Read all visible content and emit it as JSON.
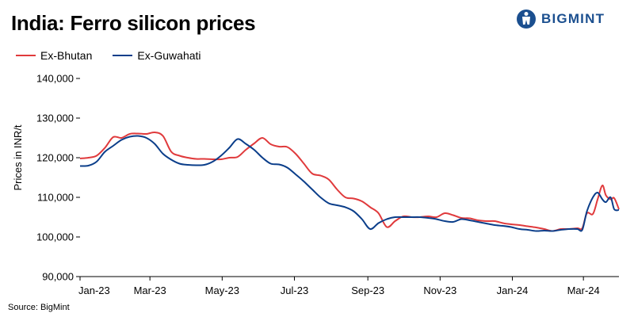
{
  "header": {
    "title": "India: Ferro silicon prices",
    "logo_text": "BIGMINT"
  },
  "footer": {
    "source": "Source: BigMint"
  },
  "chart_data": {
    "type": "line",
    "ylabel": "Prices in INR/t",
    "ylim": [
      90000,
      140000
    ],
    "yticks": [
      90000,
      100000,
      110000,
      120000,
      130000,
      140000
    ],
    "ytick_labels": [
      "90,000",
      "100,000",
      "110,000",
      "120,000",
      "130,000",
      "140,000"
    ],
    "xlim": [
      "2023-01-01",
      "2024-03-31"
    ],
    "xticks": [
      "2023-01-01",
      "2023-03-01",
      "2023-05-01",
      "2023-07-01",
      "2023-09-01",
      "2023-11-01",
      "2024-01-01",
      "2024-03-01"
    ],
    "xtick_labels": [
      "Jan-23",
      "Mar-23",
      "May-23",
      "Jul-23",
      "Sep-23",
      "Nov-23",
      "Jan-24",
      "Mar-24"
    ],
    "legend_position": "top-left",
    "grid": false,
    "series": [
      {
        "name": "Ex-Bhutan",
        "color": "#e03a3c",
        "points": [
          [
            "2023-01-01",
            119800
          ],
          [
            "2023-01-08",
            120000
          ],
          [
            "2023-01-15",
            120500
          ],
          [
            "2023-01-22",
            122500
          ],
          [
            "2023-01-29",
            125200
          ],
          [
            "2023-02-05",
            125000
          ],
          [
            "2023-02-12",
            126000
          ],
          [
            "2023-02-19",
            126100
          ],
          [
            "2023-02-26",
            126000
          ],
          [
            "2023-03-05",
            126400
          ],
          [
            "2023-03-12",
            125500
          ],
          [
            "2023-03-19",
            121500
          ],
          [
            "2023-03-26",
            120500
          ],
          [
            "2023-04-02",
            120000
          ],
          [
            "2023-04-09",
            119700
          ],
          [
            "2023-04-16",
            119700
          ],
          [
            "2023-04-23",
            119600
          ],
          [
            "2023-04-30",
            119600
          ],
          [
            "2023-05-07",
            120000
          ],
          [
            "2023-05-14",
            120200
          ],
          [
            "2023-05-21",
            122000
          ],
          [
            "2023-05-28",
            123600
          ],
          [
            "2023-06-04",
            125000
          ],
          [
            "2023-06-11",
            123400
          ],
          [
            "2023-06-18",
            122800
          ],
          [
            "2023-06-25",
            122700
          ],
          [
            "2023-07-02",
            121000
          ],
          [
            "2023-07-09",
            118500
          ],
          [
            "2023-07-16",
            116000
          ],
          [
            "2023-07-23",
            115500
          ],
          [
            "2023-07-30",
            114500
          ],
          [
            "2023-08-06",
            112000
          ],
          [
            "2023-08-13",
            110000
          ],
          [
            "2023-08-20",
            109700
          ],
          [
            "2023-08-27",
            109000
          ],
          [
            "2023-09-03",
            107500
          ],
          [
            "2023-09-10",
            106000
          ],
          [
            "2023-09-17",
            102500
          ],
          [
            "2023-09-24",
            104000
          ],
          [
            "2023-10-01",
            105200
          ],
          [
            "2023-10-08",
            105000
          ],
          [
            "2023-10-15",
            105000
          ],
          [
            "2023-10-22",
            105200
          ],
          [
            "2023-10-29",
            105000
          ],
          [
            "2023-11-05",
            106000
          ],
          [
            "2023-11-12",
            105500
          ],
          [
            "2023-11-19",
            104800
          ],
          [
            "2023-11-26",
            104700
          ],
          [
            "2023-12-03",
            104200
          ],
          [
            "2023-12-10",
            104000
          ],
          [
            "2023-12-17",
            104000
          ],
          [
            "2023-12-24",
            103500
          ],
          [
            "2023-12-31",
            103200
          ],
          [
            "2024-01-07",
            103000
          ],
          [
            "2024-01-14",
            102700
          ],
          [
            "2024-01-21",
            102400
          ],
          [
            "2024-01-28",
            102000
          ],
          [
            "2024-02-04",
            101500
          ],
          [
            "2024-02-11",
            102000
          ],
          [
            "2024-02-18",
            102000
          ],
          [
            "2024-02-25",
            102200
          ],
          [
            "2024-02-29",
            102200
          ],
          [
            "2024-03-04",
            106000
          ],
          [
            "2024-03-09",
            105800
          ],
          [
            "2024-03-13",
            109500
          ],
          [
            "2024-03-17",
            113000
          ],
          [
            "2024-03-20",
            110500
          ],
          [
            "2024-03-24",
            109500
          ],
          [
            "2024-03-27",
            109800
          ],
          [
            "2024-03-31",
            107000
          ]
        ]
      },
      {
        "name": "Ex-Guwahati",
        "color": "#0b3e8a",
        "points": [
          [
            "2023-01-01",
            117900
          ],
          [
            "2023-01-08",
            118000
          ],
          [
            "2023-01-15",
            119000
          ],
          [
            "2023-01-22",
            121500
          ],
          [
            "2023-01-29",
            123000
          ],
          [
            "2023-02-05",
            124500
          ],
          [
            "2023-02-12",
            125300
          ],
          [
            "2023-02-19",
            125500
          ],
          [
            "2023-02-26",
            125000
          ],
          [
            "2023-03-05",
            123500
          ],
          [
            "2023-03-12",
            121000
          ],
          [
            "2023-03-19",
            119500
          ],
          [
            "2023-03-26",
            118500
          ],
          [
            "2023-04-02",
            118200
          ],
          [
            "2023-04-09",
            118100
          ],
          [
            "2023-04-16",
            118200
          ],
          [
            "2023-04-23",
            119000
          ],
          [
            "2023-04-30",
            120500
          ],
          [
            "2023-05-07",
            122500
          ],
          [
            "2023-05-14",
            124700
          ],
          [
            "2023-05-21",
            123500
          ],
          [
            "2023-05-28",
            122000
          ],
          [
            "2023-06-04",
            120000
          ],
          [
            "2023-06-11",
            118500
          ],
          [
            "2023-06-18",
            118300
          ],
          [
            "2023-06-25",
            117500
          ],
          [
            "2023-07-02",
            115800
          ],
          [
            "2023-07-09",
            114000
          ],
          [
            "2023-07-16",
            112000
          ],
          [
            "2023-07-23",
            110000
          ],
          [
            "2023-07-30",
            108500
          ],
          [
            "2023-08-06",
            108000
          ],
          [
            "2023-08-13",
            107500
          ],
          [
            "2023-08-20",
            106500
          ],
          [
            "2023-08-27",
            104500
          ],
          [
            "2023-09-03",
            102000
          ],
          [
            "2023-09-10",
            103500
          ],
          [
            "2023-09-17",
            104500
          ],
          [
            "2023-09-24",
            105000
          ],
          [
            "2023-10-01",
            105000
          ],
          [
            "2023-10-08",
            105000
          ],
          [
            "2023-10-15",
            105000
          ],
          [
            "2023-10-22",
            104800
          ],
          [
            "2023-10-29",
            104500
          ],
          [
            "2023-11-05",
            104000
          ],
          [
            "2023-11-12",
            103800
          ],
          [
            "2023-11-19",
            104500
          ],
          [
            "2023-11-26",
            104200
          ],
          [
            "2023-12-03",
            103800
          ],
          [
            "2023-12-10",
            103400
          ],
          [
            "2023-12-17",
            103000
          ],
          [
            "2023-12-24",
            102800
          ],
          [
            "2023-12-31",
            102500
          ],
          [
            "2024-01-07",
            102000
          ],
          [
            "2024-01-14",
            101800
          ],
          [
            "2024-01-21",
            101500
          ],
          [
            "2024-01-28",
            101600
          ],
          [
            "2024-02-04",
            101500
          ],
          [
            "2024-02-11",
            101800
          ],
          [
            "2024-02-18",
            102000
          ],
          [
            "2024-02-25",
            102000
          ],
          [
            "2024-02-29",
            101800
          ],
          [
            "2024-03-04",
            106500
          ],
          [
            "2024-03-09",
            110000
          ],
          [
            "2024-03-13",
            111200
          ],
          [
            "2024-03-17",
            109500
          ],
          [
            "2024-03-20",
            108800
          ],
          [
            "2024-03-24",
            110000
          ],
          [
            "2024-03-27",
            107000
          ],
          [
            "2024-03-31",
            106800
          ]
        ]
      }
    ]
  }
}
